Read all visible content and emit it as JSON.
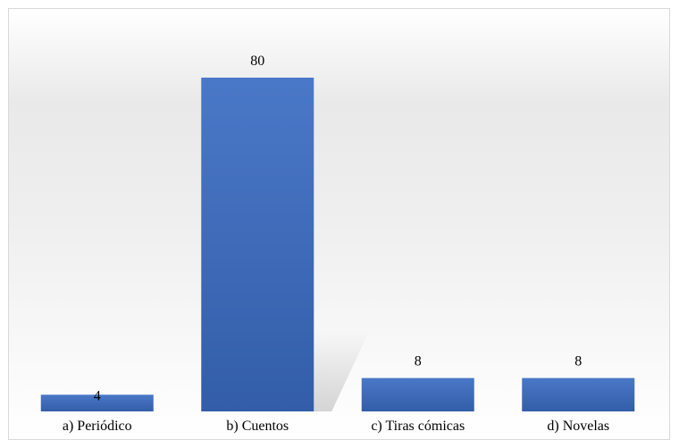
{
  "chart_data": {
    "type": "bar",
    "categories": [
      "a) Periódico",
      "b) Cuentos",
      "c) Tiras cómicas",
      "d) Novelas"
    ],
    "values": [
      4,
      80,
      8,
      8
    ],
    "data_labels": [
      "4",
      "80",
      "8",
      "8"
    ],
    "title": "",
    "xlabel": "",
    "ylabel": "",
    "ylim": [
      0,
      80
    ],
    "grid": false,
    "legend": "none",
    "bar_color": "#4472c4",
    "bar_color_dark": "#2f5597"
  }
}
